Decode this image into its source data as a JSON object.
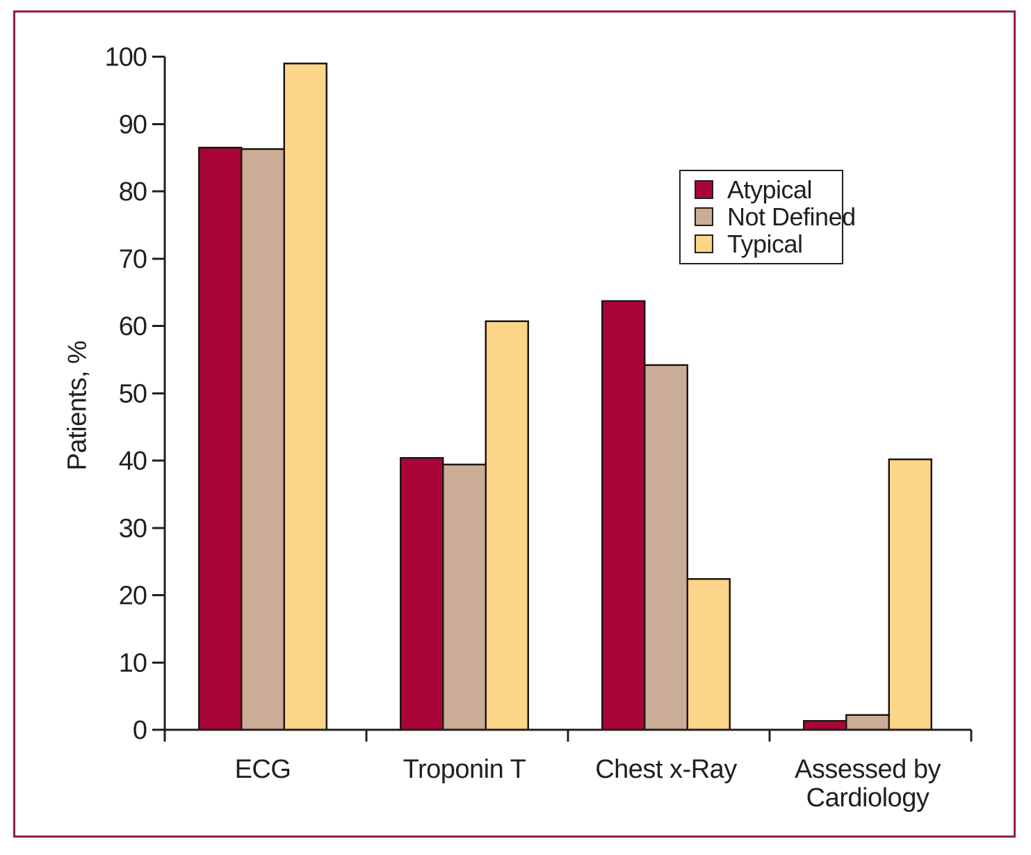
{
  "chart_data": {
    "type": "bar",
    "categories": [
      "ECG",
      "Troponin T",
      "Chest x-Ray",
      "Assessed by\nCardiology"
    ],
    "series": [
      {
        "name": "Atypical",
        "color": "#aa0537",
        "values": [
          86.5,
          40.4,
          63.7,
          1.3
        ]
      },
      {
        "name": "Not Defined",
        "color": "#cbad97",
        "values": [
          86.3,
          39.4,
          54.2,
          2.2
        ]
      },
      {
        "name": "Typical",
        "color": "#fdd588",
        "values": [
          99.0,
          60.7,
          22.4,
          40.2
        ]
      }
    ],
    "title": "",
    "xlabel": "",
    "ylabel": "Patients, %",
    "ylim": [
      0,
      100
    ],
    "yticks": [
      0,
      10,
      20,
      30,
      40,
      50,
      60,
      70,
      80,
      90,
      100
    ],
    "grid": false,
    "legend_position": "upper right",
    "axis_color": "#231f20",
    "bar_border_color": "#1e1713",
    "frame_color": "#8f2044"
  }
}
